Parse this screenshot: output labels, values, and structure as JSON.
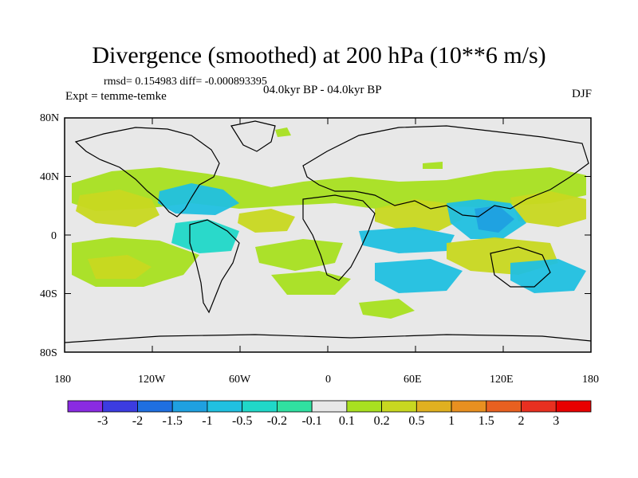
{
  "title": "Divergence (smoothed) at 200 hPa (10**6 m/s)",
  "stats": "rmsd= 0.154983 diff= -0.000893395",
  "expt": "Expt = temme-temke",
  "period": "04.0kyr BP - 04.0kyr BP",
  "season": "DJF",
  "map": {
    "lat_ticks": [
      "80N",
      "40N",
      "0",
      "40S",
      "80S"
    ],
    "lon_ticks": [
      "180",
      "120W",
      "60W",
      "0",
      "60E",
      "120E",
      "180"
    ],
    "land_outline": "black",
    "background": "#e8e8e8"
  },
  "colorbar": {
    "labels": [
      "-3",
      "-2",
      "-1.5",
      "-1",
      "-0.5",
      "-0.2",
      "-0.1",
      "0.1",
      "0.2",
      "0.5",
      "1",
      "1.5",
      "2",
      "3"
    ],
    "colors": [
      "#8a2be2",
      "#3c3ce0",
      "#1f6fe0",
      "#1fa0e0",
      "#20c0e0",
      "#20d8c8",
      "#30e0a0",
      "#e8e8e8",
      "#a8e020",
      "#c8d820",
      "#e0b020",
      "#e89020",
      "#e86020",
      "#e83020",
      "#e80000"
    ]
  }
}
